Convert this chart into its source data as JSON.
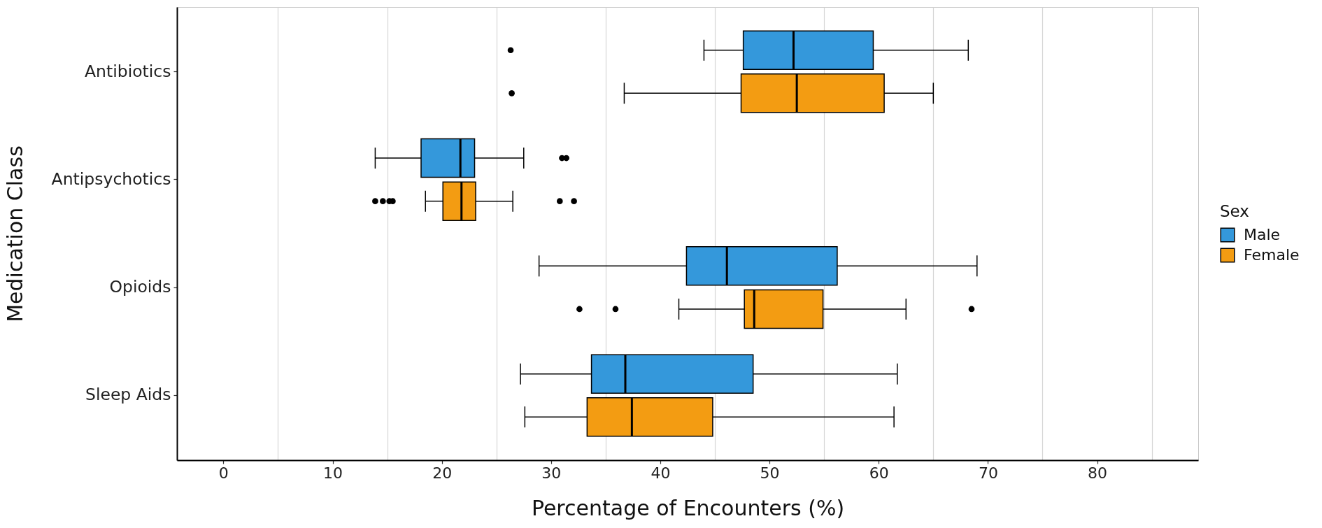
{
  "chart_data": {
    "type": "box",
    "orientation": "horizontal",
    "xlabel": "Percentage of Encounters (%)",
    "ylabel": "Medication Class",
    "legend_title": "Sex",
    "legend": "right",
    "grid": "x",
    "categories": [
      "Antibiotics",
      "Antipsychotics",
      "Opioids",
      "Sleep Aids"
    ],
    "xlim": [
      -4.25,
      89.25
    ],
    "xticks": [
      0,
      {
        "value": 5,
        "label": null
      },
      10,
      {
        "value": 15,
        "label": null
      },
      20,
      {
        "value": 25,
        "label": null
      },
      30,
      {
        "value": 35,
        "label": null
      },
      40,
      {
        "value": 45,
        "label": null
      },
      50,
      {
        "value": 55,
        "label": null
      },
      60,
      {
        "value": 65,
        "label": null
      },
      70,
      {
        "value": 75,
        "label": null
      },
      80,
      {
        "value": 85,
        "label": null
      }
    ],
    "series": [
      {
        "name": "Male",
        "color": "#3498db",
        "boxes": [
          {
            "low": 44.0,
            "q1": 47.6,
            "median": 52.2,
            "q3": 59.5,
            "high": 68.2,
            "outliers": [
              26.3
            ]
          },
          {
            "low": 13.9,
            "q1": 18.1,
            "median": 21.7,
            "q3": 23.0,
            "high": 27.5,
            "outliers": [
              31.0,
              31.4
            ]
          },
          {
            "low": 28.9,
            "q1": 42.4,
            "median": 46.1,
            "q3": 56.2,
            "high": 69.0
          },
          {
            "low": 27.2,
            "q1": 33.7,
            "median": 36.8,
            "q3": 48.5,
            "high": 61.7
          }
        ]
      },
      {
        "name": "Female",
        "color": "#f39c12",
        "boxes": [
          {
            "low": 36.7,
            "q1": 47.4,
            "median": 52.5,
            "q3": 60.5,
            "high": 65.0,
            "outliers": [
              26.4
            ]
          },
          {
            "low": 18.5,
            "q1": 20.1,
            "median": 21.8,
            "q3": 23.1,
            "high": 26.5,
            "outliers": [
              13.9,
              14.6,
              15.2,
              15.5,
              30.8,
              32.1
            ]
          },
          {
            "low": 41.7,
            "q1": 47.7,
            "median": 48.6,
            "q3": 54.9,
            "high": 62.5,
            "outliers": [
              32.6,
              35.9,
              68.5
            ]
          },
          {
            "low": 27.6,
            "q1": 33.3,
            "median": 37.4,
            "q3": 44.8,
            "high": 61.4
          }
        ]
      }
    ]
  }
}
